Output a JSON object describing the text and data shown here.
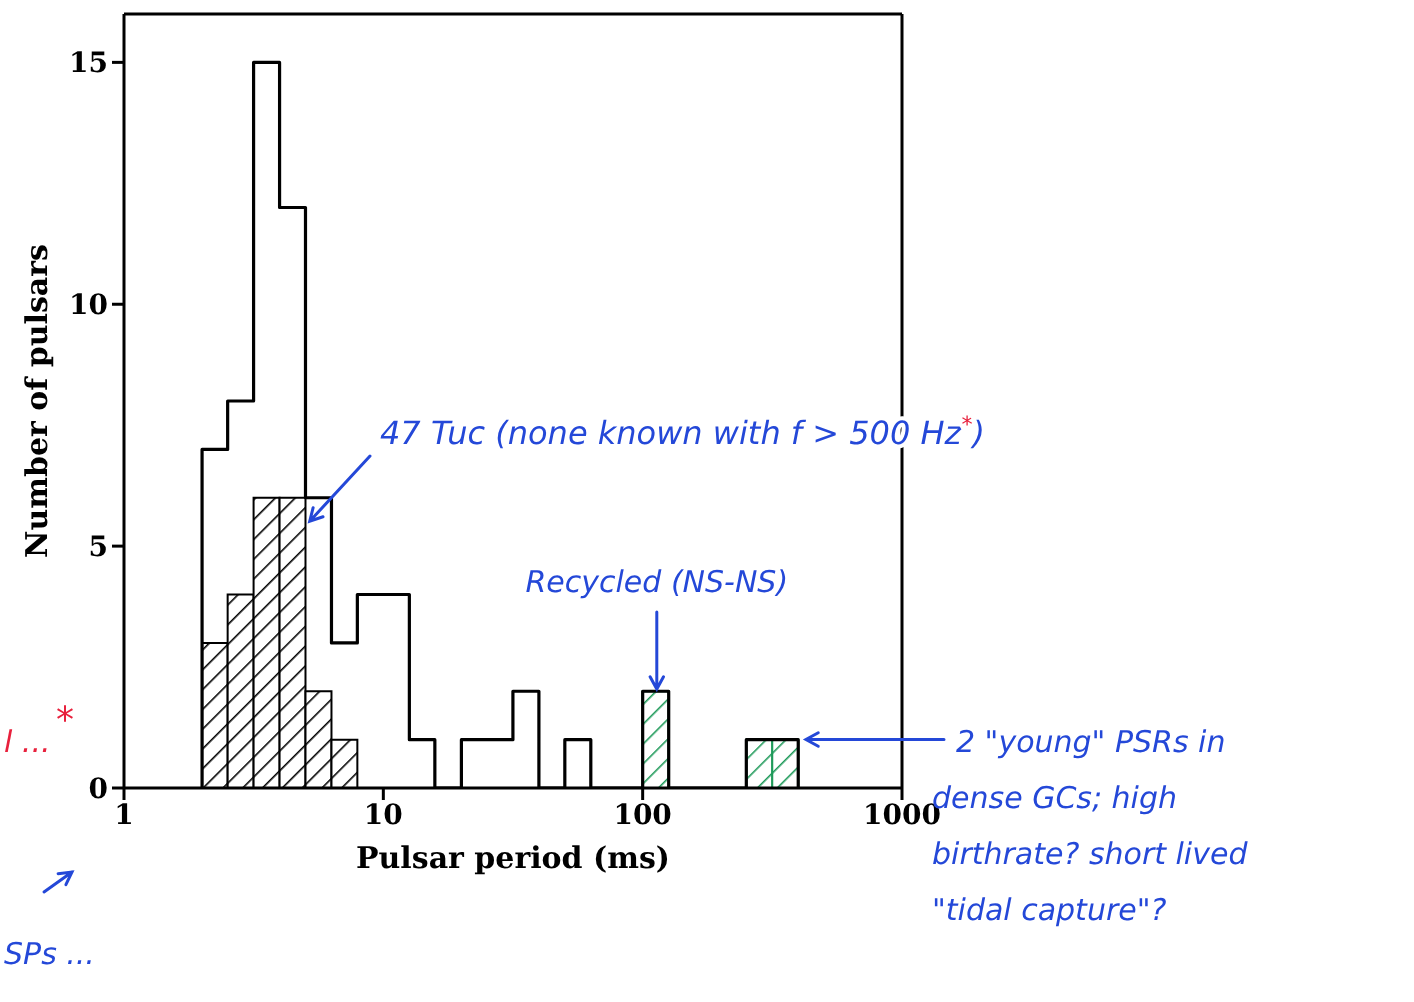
{
  "chart_data": {
    "type": "histogram",
    "xlabel": "Pulsar period (ms)",
    "ylabel": "Number of pulsars",
    "log": "x",
    "xlim": [
      1,
      1000
    ],
    "xticks": [
      1,
      10,
      100,
      1000
    ],
    "ylim": [
      0,
      16
    ],
    "yticks": [
      0,
      5,
      10,
      15
    ],
    "bins": [
      2,
      2.51,
      3.16,
      3.98,
      5.01,
      6.31,
      7.94,
      10,
      12.6,
      15.8,
      20,
      25.1,
      31.6,
      39.8,
      50.1,
      63.1,
      100,
      126,
      251,
      316,
      398
    ],
    "series": [
      {
        "color": "#000000",
        "values": [
          7,
          8,
          15,
          12,
          6,
          3,
          4,
          4,
          1,
          0,
          1,
          1,
          2,
          0,
          1,
          0,
          2,
          0,
          1,
          1
        ]
      },
      {
        "color": "#000000",
        "values": [
          3,
          4,
          6,
          6,
          2,
          1,
          0,
          0,
          0,
          0,
          0,
          0,
          0,
          0,
          0,
          0,
          0,
          0,
          0,
          0
        ]
      },
      {
        "color": "#1f9a5a",
        "values": [
          0,
          0,
          0,
          0,
          0,
          0,
          0,
          0,
          0,
          0,
          0,
          0,
          0,
          0,
          0,
          0,
          2,
          0,
          1,
          1
        ]
      }
    ],
    "annotations": [
      {
        "text": "47 Tuc (none known with f > 500 Hz$^{*}$)",
        "x": 5,
        "y": 5.5
      },
      {
        "text": "Recycled (NS-NS)",
        "x": 112,
        "y": 2
      },
      {
        "text": "2 \"young\" PSRs in dense GCs; high birthrate? short lived \"tidal capture\"?",
        "x": 398,
        "y": 1
      },
      "l ...",
      "*",
      "SPs ..."
    ]
  }
}
